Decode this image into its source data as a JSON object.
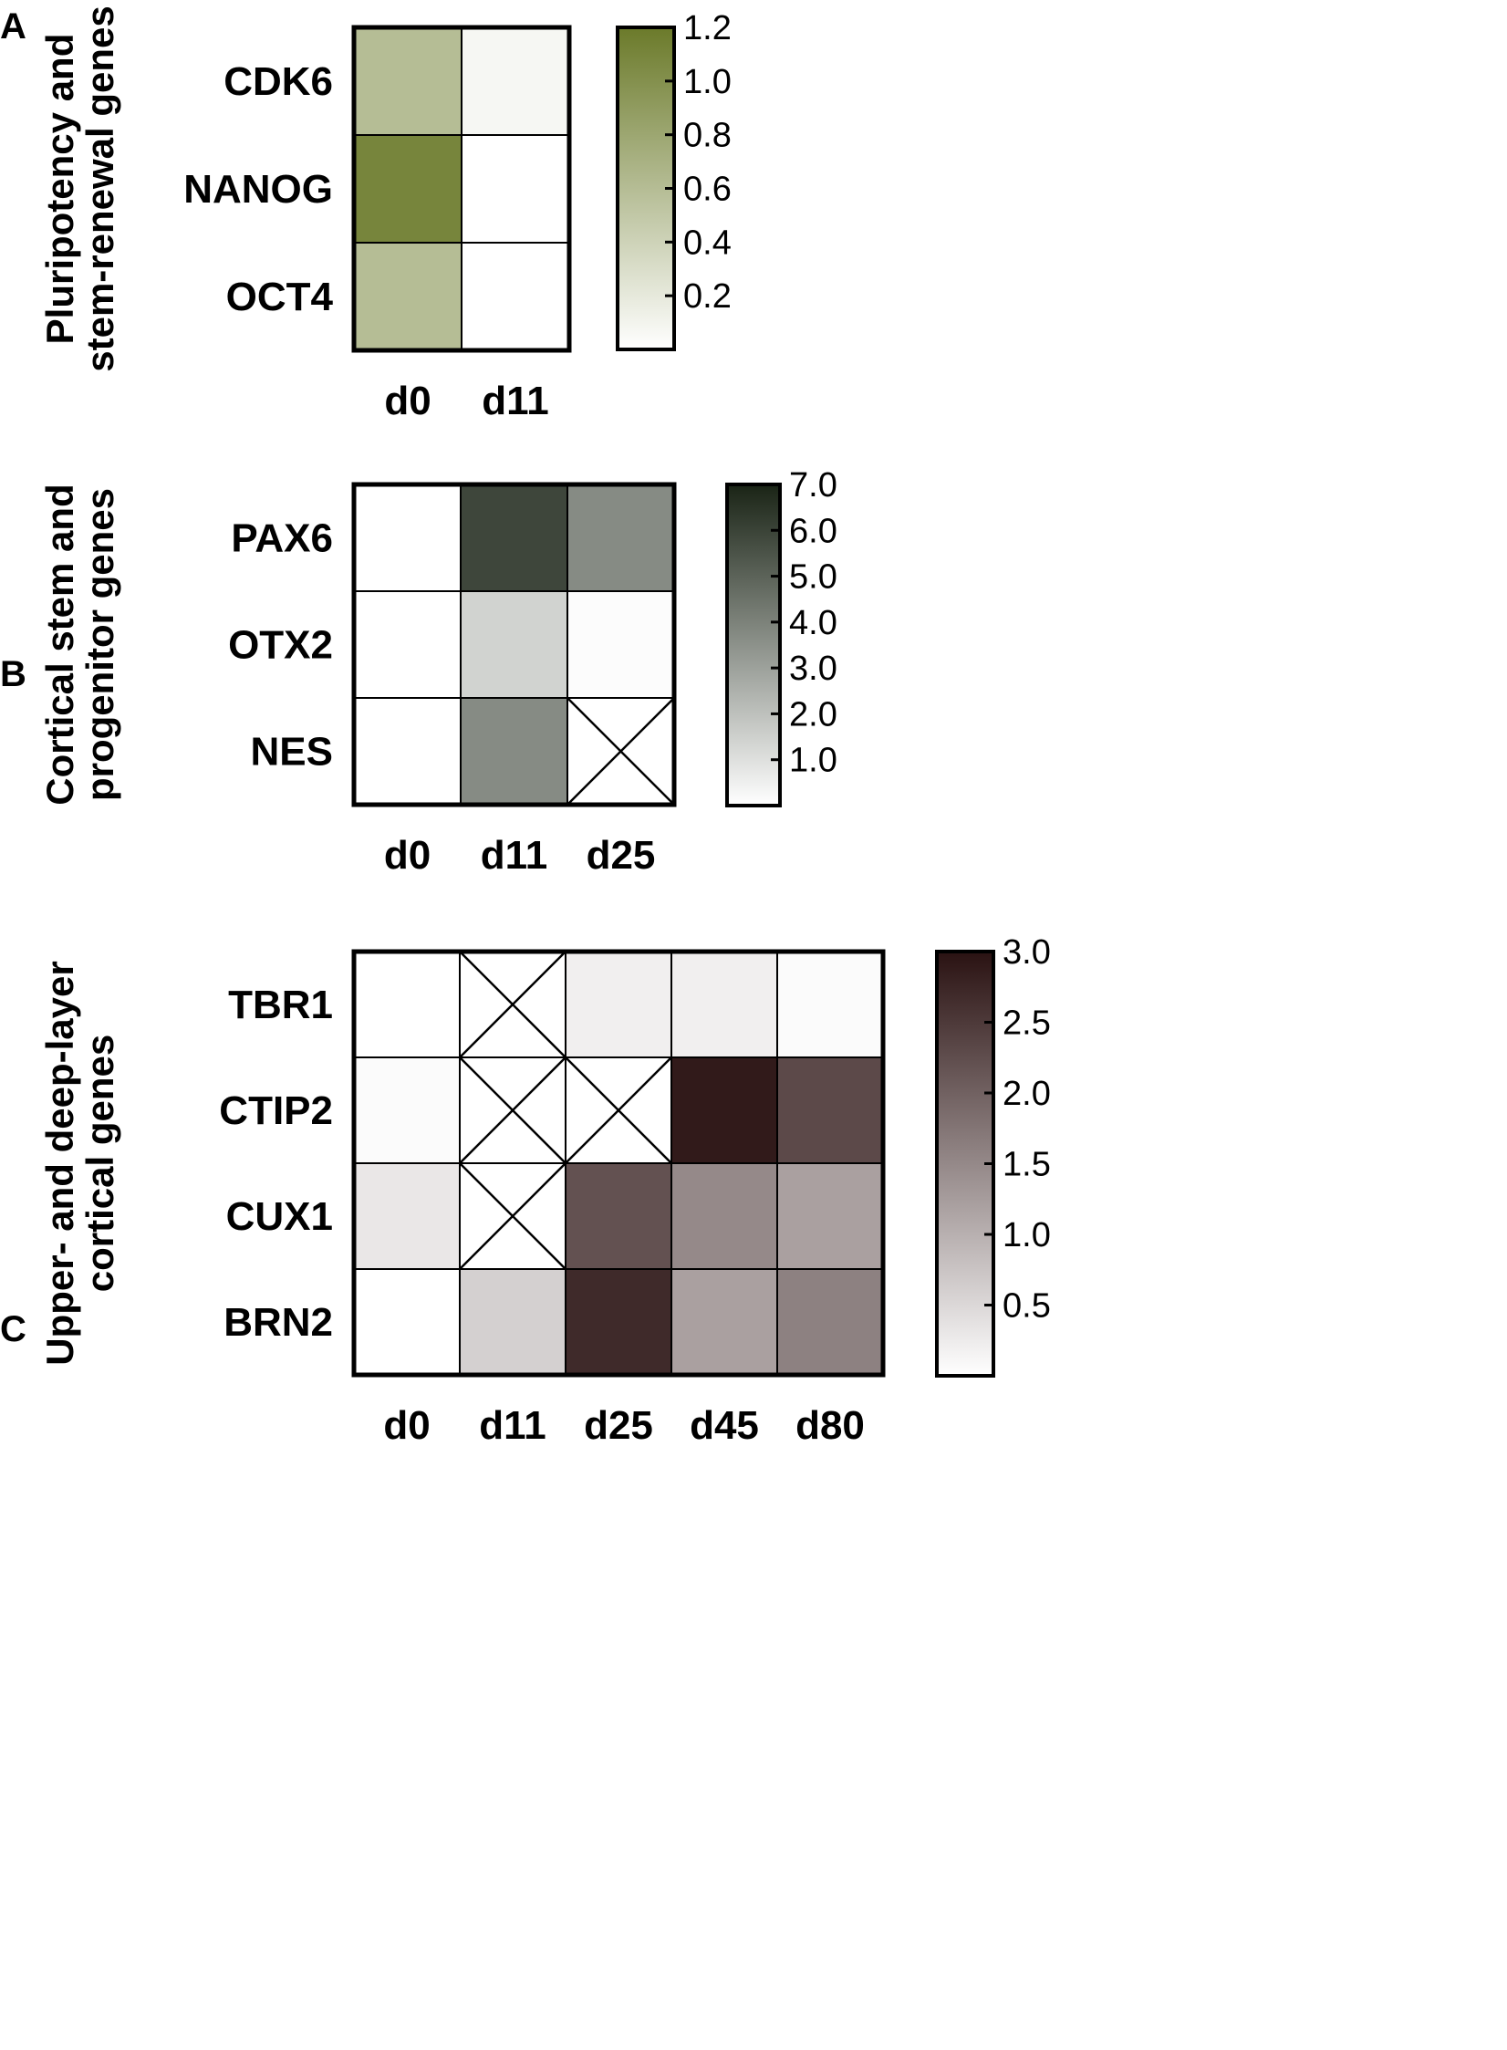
{
  "chart_data": [
    {
      "type": "heatmap",
      "panel": "A",
      "ylabel": [
        "Pluripotency and",
        "stem-renewal genes"
      ],
      "rows": [
        "CDK6",
        "NANOG",
        "OCT4"
      ],
      "columns": [
        "d0",
        "d11"
      ],
      "values": [
        [
          0.6,
          0.07
        ],
        [
          1.1,
          0.0
        ],
        [
          0.6,
          0.0
        ]
      ],
      "missing": [],
      "colorbar": {
        "min": 0,
        "max": 1.2,
        "ticks": [
          "1.2",
          "1.0",
          "0.8",
          "0.6",
          "0.4",
          "0.2"
        ],
        "low_color": "#ffffff",
        "high_color": "#6b7a2a"
      }
    },
    {
      "type": "heatmap",
      "panel": "B",
      "ylabel": [
        "Cortical stem and",
        "progenitor genes"
      ],
      "rows": [
        "PAX6",
        "OTX2",
        "NES"
      ],
      "columns": [
        "d0",
        "d11",
        "d25"
      ],
      "values": [
        [
          0.0,
          5.9,
          3.7
        ],
        [
          0.0,
          1.4,
          0.1
        ],
        [
          0.0,
          3.7,
          null
        ]
      ],
      "missing": [
        [
          2,
          2
        ]
      ],
      "colorbar": {
        "min": 0,
        "max": 7.0,
        "ticks": [
          "7.0",
          "6.0",
          "5.0",
          "4.0",
          "3.0",
          "2.0",
          "1.0"
        ],
        "low_color": "#ffffff",
        "high_color": "#1a2416"
      }
    },
    {
      "type": "heatmap",
      "panel": "C",
      "ylabel": [
        "Upper- and deep-layer",
        "cortical genes"
      ],
      "rows": [
        "TBR1",
        "CTIP2",
        "CUX1",
        "BRN2"
      ],
      "columns": [
        "d0",
        "d11",
        "d25",
        "d45",
        "d80"
      ],
      "values": [
        [
          0.0,
          null,
          0.2,
          0.2,
          0.05
        ],
        [
          0.05,
          null,
          null,
          2.9,
          2.3
        ],
        [
          0.3,
          null,
          2.2,
          1.5,
          1.2
        ],
        [
          0.0,
          0.6,
          2.7,
          1.2,
          1.6
        ]
      ],
      "missing": [
        [
          0,
          1
        ],
        [
          1,
          1
        ],
        [
          1,
          2
        ],
        [
          2,
          1
        ]
      ],
      "colorbar": {
        "min": 0,
        "max": 3.0,
        "ticks": [
          "3.0",
          "2.5",
          "2.0",
          "1.5",
          "1.0",
          "0.5"
        ],
        "low_color": "#ffffff",
        "high_color": "#2a1212"
      }
    }
  ]
}
